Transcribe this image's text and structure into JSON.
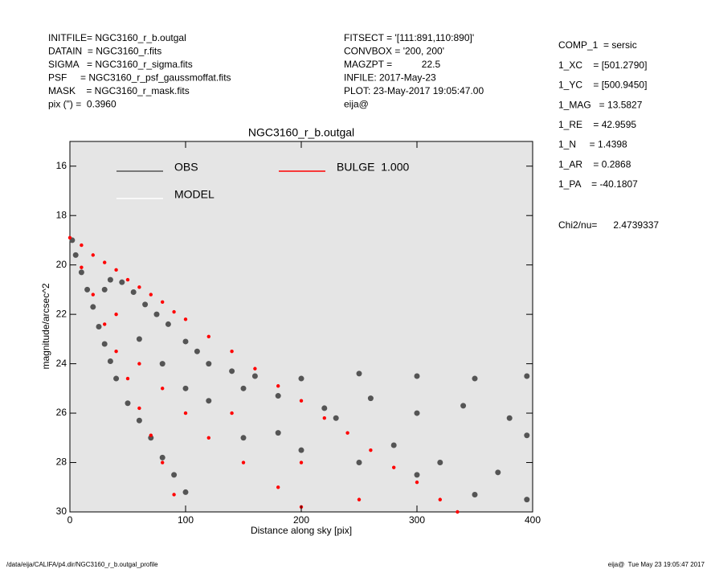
{
  "chart_data": {
    "type": "scatter",
    "title": "NGC3160_r_b.outgal",
    "xlabel": "Distance along sky [pix]",
    "ylabel": "magnitude/arcsec^2",
    "xlim": [
      0,
      400
    ],
    "xticks": [
      0,
      100,
      200,
      300,
      400
    ],
    "ylim": [
      30,
      15
    ],
    "yticks": [
      16,
      18,
      20,
      22,
      24,
      26,
      28,
      30
    ],
    "header_left": [
      "INITFILE= NGC3160_r_b.outgal",
      "DATAIN  = NGC3160_r.fits",
      "SIGMA   = NGC3160_r_sigma.fits",
      "PSF     = NGC3160_r_psf_gaussmoffat.fits",
      "MASK    = NGC3160_r_mask.fits",
      "pix (\") =  0.3960"
    ],
    "header_mid": [
      "FITSECT = '[111:891,110:890]'",
      "CONVBOX = '200, 200'",
      "MAGZPT =           22.5",
      "INFILE: 2017-May-23",
      "PLOT: 23-May-2017 19:05:47.00",
      "eija@"
    ],
    "header_right": [
      "COMP_1  = sersic",
      "1_XC    = [501.2790]",
      "1_YC    = [500.9450]",
      "1_MAG   = 13.5827",
      "1_RE    = 42.9595",
      "1_N     = 1.4398",
      "1_AR    = 0.2868",
      "1_PA    = -40.1807"
    ],
    "chi2": "Chi2/nu=      2.4739337",
    "footer_left": "/data/eija/CALIFA/p4.dir/NGC3160_r_b.outgal_profile",
    "footer_right": "eija@  Tue May 23 19:05:47 2017",
    "series": [
      {
        "name": "OBS",
        "color": "#555555",
        "x": [
          2,
          5,
          10,
          15,
          20,
          25,
          30,
          35,
          40,
          50,
          60,
          70,
          80,
          90,
          100,
          30,
          35,
          45,
          55,
          65,
          75,
          85,
          100,
          110,
          120,
          140,
          160,
          200,
          250,
          300,
          350,
          395,
          60,
          80,
          100,
          120,
          150,
          180,
          220,
          260,
          300,
          340,
          380,
          395,
          150,
          200,
          250,
          300,
          350,
          395,
          280,
          320,
          370,
          180,
          230
        ],
        "values": [
          19,
          19.6,
          20.3,
          21,
          21.7,
          22.5,
          23.2,
          23.9,
          24.6,
          25.6,
          26.3,
          27,
          27.8,
          28.5,
          29.2,
          21,
          20.6,
          20.7,
          21.1,
          21.6,
          22,
          22.4,
          23.1,
          23.5,
          24,
          24.3,
          24.5,
          24.6,
          24.4,
          24.5,
          24.6,
          24.5,
          23,
          24,
          25,
          25.5,
          25,
          25.3,
          25.8,
          25.4,
          26,
          25.7,
          26.2,
          26.9,
          27,
          27.5,
          28,
          28.5,
          29.3,
          29.5,
          27.3,
          28,
          28.4,
          26.8,
          26.2
        ]
      },
      {
        "name": "MODEL",
        "color": "#ffffff",
        "x": [],
        "values": []
      },
      {
        "name": "BULGE  1.000",
        "color": "#ff0000",
        "x": [
          0,
          10,
          10,
          20,
          20,
          30,
          30,
          40,
          40,
          50,
          50,
          60,
          60,
          70,
          70,
          80,
          80,
          90,
          90,
          100,
          120,
          140,
          160,
          180,
          200,
          220,
          240,
          260,
          280,
          300,
          320,
          335,
          60,
          100,
          120,
          150,
          180,
          200,
          140,
          200,
          250,
          40,
          80
        ],
        "values": [
          18.9,
          19.2,
          20.1,
          19.6,
          21.2,
          19.9,
          22.4,
          20.2,
          23.5,
          20.6,
          24.6,
          20.9,
          25.8,
          21.2,
          26.9,
          21.5,
          28,
          21.9,
          29.3,
          22.2,
          22.9,
          23.5,
          24.2,
          24.9,
          25.5,
          26.2,
          26.8,
          27.5,
          28.2,
          28.8,
          29.5,
          30,
          24,
          26,
          27,
          28,
          29,
          29.8,
          26,
          28,
          29.5,
          22,
          25
        ]
      }
    ]
  }
}
